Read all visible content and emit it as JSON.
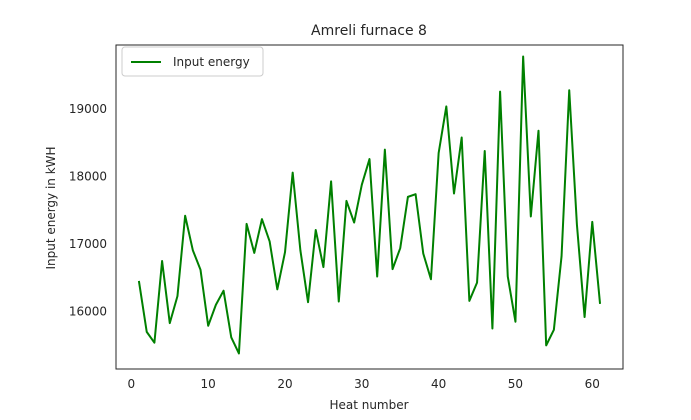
{
  "chart_data": {
    "type": "line",
    "title": "Amreli furnace 8",
    "xlabel": "Heat number",
    "ylabel": "Input energy in kWH",
    "xlim": [
      -2,
      64
    ],
    "ylim": [
      15150,
      19950
    ],
    "xticks": [
      0,
      10,
      20,
      30,
      40,
      50,
      60
    ],
    "yticks": [
      16000,
      17000,
      18000,
      19000
    ],
    "grid": false,
    "legend": {
      "position": "upper-left",
      "entries": [
        "Input energy"
      ]
    },
    "series": [
      {
        "name": "Input energy",
        "color": "#008000",
        "x": [
          1,
          2,
          3,
          4,
          5,
          6,
          7,
          8,
          9,
          10,
          11,
          12,
          13,
          14,
          15,
          16,
          17,
          18,
          19,
          20,
          21,
          22,
          23,
          24,
          25,
          26,
          27,
          28,
          29,
          30,
          31,
          32,
          33,
          34,
          35,
          36,
          37,
          38,
          39,
          40,
          41,
          42,
          43,
          44,
          45,
          46,
          47,
          48,
          49,
          50,
          51,
          52,
          53,
          54,
          55,
          56,
          57,
          58,
          59,
          60,
          61
        ],
        "y": [
          16440,
          15700,
          15540,
          16750,
          15830,
          16230,
          17420,
          16910,
          16620,
          15790,
          16100,
          16310,
          15620,
          15380,
          17300,
          16870,
          17370,
          17040,
          16330,
          16880,
          18060,
          16910,
          16140,
          17210,
          16660,
          17930,
          16150,
          17640,
          17320,
          17880,
          18260,
          16520,
          18400,
          16630,
          16940,
          17700,
          17740,
          16860,
          16480,
          18350,
          19040,
          17750,
          18580,
          16160,
          16430,
          18380,
          15750,
          19260,
          16520,
          15850,
          19780,
          17410,
          18680,
          15500,
          15730,
          16820,
          19280,
          17290,
          15920,
          17330,
          16130
        ]
      }
    ]
  }
}
